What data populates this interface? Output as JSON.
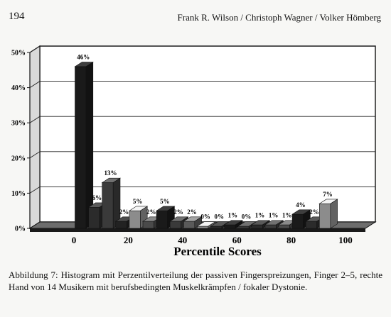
{
  "page": {
    "number": "194",
    "running_head": "Frank R. Wilson / Christoph Wagner / Volker Hömberg"
  },
  "chart_data": {
    "type": "bar",
    "title": "",
    "xlabel": "Percentile Scores",
    "ylabel": "",
    "ylim": [
      0,
      50
    ],
    "y_ticks": [
      0,
      10,
      20,
      30,
      40,
      50
    ],
    "y_tick_labels": [
      "0%",
      "10%",
      "20%",
      "30%",
      "40%",
      "50%"
    ],
    "x_ticks": [
      0,
      20,
      40,
      60,
      80,
      100
    ],
    "x_tick_labels": [
      "0",
      "20",
      "40",
      "60",
      "80",
      "100"
    ],
    "xlim": [
      0,
      100
    ],
    "grid": true,
    "legend": "none",
    "bars": [
      {
        "x": 0,
        "value": 46,
        "label": "46%",
        "color": "#1a1a1a"
      },
      {
        "x": 5,
        "value": 6,
        "label": "6%",
        "color": "#2b2b2b"
      },
      {
        "x": 10,
        "value": 13,
        "label": "13%",
        "color": "#3a3a3a"
      },
      {
        "x": 15,
        "value": 2,
        "label": "2%",
        "color": "#222222"
      },
      {
        "x": 20,
        "value": 5,
        "label": "5%",
        "color": "#8c8c8c"
      },
      {
        "x": 25,
        "value": 2,
        "label": "2%",
        "color": "#4a4a4a"
      },
      {
        "x": 30,
        "value": 5,
        "label": "5%",
        "color": "#1a1a1a"
      },
      {
        "x": 35,
        "value": 2,
        "label": "2%",
        "color": "#3a3a3a"
      },
      {
        "x": 40,
        "value": 2,
        "label": "2%",
        "color": "#5a5a5a"
      },
      {
        "x": 45,
        "value": 0,
        "label": "0%",
        "color": "#8c8c8c"
      },
      {
        "x": 50,
        "value": 0,
        "label": "0%",
        "color": "#2b2b2b"
      },
      {
        "x": 55,
        "value": 1,
        "label": "1%",
        "color": "#1a1a1a"
      },
      {
        "x": 60,
        "value": 0,
        "label": "0%",
        "color": "#3a3a3a"
      },
      {
        "x": 65,
        "value": 1,
        "label": "1%",
        "color": "#2b2b2b"
      },
      {
        "x": 70,
        "value": 1,
        "label": "1%",
        "color": "#3a3a3a"
      },
      {
        "x": 75,
        "value": 1,
        "label": "1%",
        "color": "#4a4a4a"
      },
      {
        "x": 80,
        "value": 4,
        "label": "4%",
        "color": "#1a1a1a"
      },
      {
        "x": 85,
        "value": 2,
        "label": "2%",
        "color": "#2b2b2b"
      },
      {
        "x": 90,
        "value": 7,
        "label": "7%",
        "color": "#8c8c8c"
      }
    ]
  },
  "caption": "Abbildung 7: Histogram mit Perzentilverteilung der passiven Fingerspreizungen, Finger 2–5, rechte Hand von 14 Musikern mit berufsbedingten Muskelkrämpfen / fokaler Dystonie."
}
